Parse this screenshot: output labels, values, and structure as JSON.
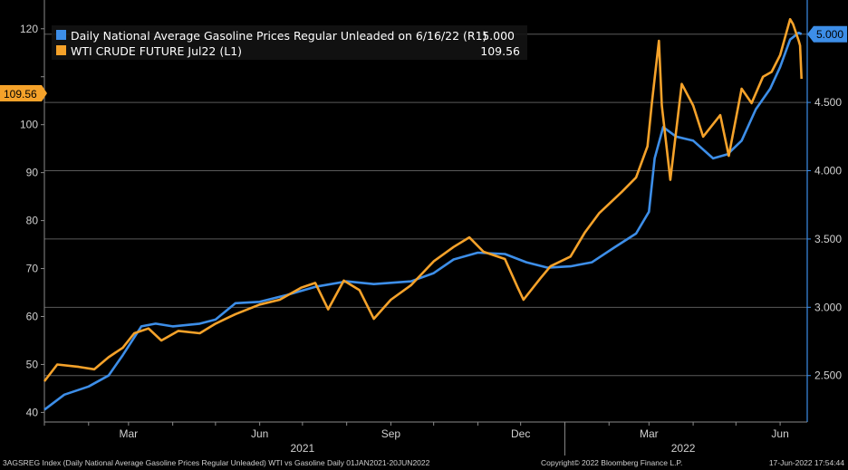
{
  "chart_data": {
    "type": "line",
    "title": "",
    "x_range": [
      "2021-01-01",
      "2022-06-20"
    ],
    "left_axis": {
      "ticks": [
        40,
        50,
        60,
        70,
        80,
        90,
        100,
        110,
        120
      ],
      "tick_labels": [
        "40",
        "50",
        "60",
        "70",
        "80",
        "90",
        "100",
        "",
        "120"
      ],
      "range": [
        38,
        126
      ]
    },
    "right_axis": {
      "ticks": [
        2.5,
        3.0,
        3.5,
        4.0,
        4.5,
        5.0
      ],
      "tick_labels": [
        "2.500",
        "3.000",
        "3.500",
        "4.000",
        "4.500",
        "5.000"
      ],
      "range": [
        2.16,
        5.25
      ]
    },
    "month_labels": [
      {
        "label": "Mar",
        "date": "2021-03-01"
      },
      {
        "label": "Jun",
        "date": "2021-06-01"
      },
      {
        "label": "Sep",
        "date": "2021-09-01"
      },
      {
        "label": "Dec",
        "date": "2021-12-01"
      },
      {
        "label": "Mar",
        "date": "2022-03-01"
      },
      {
        "label": "Jun",
        "date": "2022-06-01"
      }
    ],
    "year_labels": [
      {
        "label": "2021",
        "date": "2021-07-01"
      },
      {
        "label": "2022",
        "date": "2022-03-25"
      }
    ],
    "year_divider": "2022-01-01",
    "grid": true,
    "legend_position": "top-left",
    "series": [
      {
        "name": "Daily National Average Gasoline Prices Regular Unleaded on 6/16/22  (R1)",
        "legend_value": "5.000",
        "axis": "right",
        "color": "#3d8ee8",
        "last_value_tag": "5.000",
        "points": [
          [
            "2021-01-01",
            2.25
          ],
          [
            "2021-01-15",
            2.36
          ],
          [
            "2021-02-01",
            2.42
          ],
          [
            "2021-02-15",
            2.5
          ],
          [
            "2021-02-25",
            2.65
          ],
          [
            "2021-03-10",
            2.86
          ],
          [
            "2021-03-20",
            2.88
          ],
          [
            "2021-04-01",
            2.86
          ],
          [
            "2021-04-20",
            2.88
          ],
          [
            "2021-05-01",
            2.91
          ],
          [
            "2021-05-15",
            3.03
          ],
          [
            "2021-06-01",
            3.04
          ],
          [
            "2021-06-20",
            3.09
          ],
          [
            "2021-07-10",
            3.15
          ],
          [
            "2021-08-01",
            3.19
          ],
          [
            "2021-08-20",
            3.17
          ],
          [
            "2021-09-15",
            3.19
          ],
          [
            "2021-10-01",
            3.25
          ],
          [
            "2021-10-15",
            3.35
          ],
          [
            "2021-11-01",
            3.4
          ],
          [
            "2021-11-20",
            3.39
          ],
          [
            "2021-12-05",
            3.33
          ],
          [
            "2021-12-20",
            3.29
          ],
          [
            "2022-01-05",
            3.3
          ],
          [
            "2022-01-20",
            3.33
          ],
          [
            "2022-02-05",
            3.44
          ],
          [
            "2022-02-20",
            3.54
          ],
          [
            "2022-03-01",
            3.7
          ],
          [
            "2022-03-05",
            4.09
          ],
          [
            "2022-03-11",
            4.32
          ],
          [
            "2022-03-20",
            4.25
          ],
          [
            "2022-04-01",
            4.22
          ],
          [
            "2022-04-15",
            4.09
          ],
          [
            "2022-04-25",
            4.12
          ],
          [
            "2022-05-05",
            4.22
          ],
          [
            "2022-05-15",
            4.45
          ],
          [
            "2022-05-25",
            4.6
          ],
          [
            "2022-06-01",
            4.76
          ],
          [
            "2022-06-08",
            4.96
          ],
          [
            "2022-06-14",
            5.01
          ],
          [
            "2022-06-16",
            5.0
          ]
        ]
      },
      {
        "name": "WTI CRUDE FUTURE Jul22  (L1)",
        "legend_value": "109.56",
        "axis": "left",
        "color": "#f5a22a",
        "last_value_tag": "109.56",
        "points": [
          [
            "2021-01-01",
            46.5
          ],
          [
            "2021-01-10",
            50.0
          ],
          [
            "2021-01-25",
            49.5
          ],
          [
            "2021-02-05",
            49.0
          ],
          [
            "2021-02-15",
            51.5
          ],
          [
            "2021-02-25",
            53.5
          ],
          [
            "2021-03-05",
            56.5
          ],
          [
            "2021-03-15",
            57.5
          ],
          [
            "2021-03-24",
            55.0
          ],
          [
            "2021-04-05",
            57.0
          ],
          [
            "2021-04-20",
            56.5
          ],
          [
            "2021-05-01",
            58.5
          ],
          [
            "2021-05-15",
            60.5
          ],
          [
            "2021-06-01",
            62.5
          ],
          [
            "2021-06-15",
            63.5
          ],
          [
            "2021-06-30",
            66.0
          ],
          [
            "2021-07-10",
            67.0
          ],
          [
            "2021-07-19",
            61.5
          ],
          [
            "2021-07-30",
            67.5
          ],
          [
            "2021-08-10",
            65.5
          ],
          [
            "2021-08-20",
            59.5
          ],
          [
            "2021-09-01",
            63.5
          ],
          [
            "2021-09-15",
            66.5
          ],
          [
            "2021-10-01",
            71.5
          ],
          [
            "2021-10-15",
            74.5
          ],
          [
            "2021-10-26",
            76.5
          ],
          [
            "2021-11-05",
            73.5
          ],
          [
            "2021-11-20",
            72.0
          ],
          [
            "2021-11-29",
            66.0
          ],
          [
            "2021-12-03",
            63.5
          ],
          [
            "2021-12-15",
            68.0
          ],
          [
            "2021-12-22",
            70.5
          ],
          [
            "2022-01-05",
            72.5
          ],
          [
            "2022-01-15",
            77.5
          ],
          [
            "2022-01-25",
            81.5
          ],
          [
            "2022-02-10",
            86.0
          ],
          [
            "2022-02-20",
            89.0
          ],
          [
            "2022-02-28",
            95.5
          ],
          [
            "2022-03-03",
            104.5
          ],
          [
            "2022-03-08",
            117.5
          ],
          [
            "2022-03-10",
            104.0
          ],
          [
            "2022-03-16",
            88.5
          ],
          [
            "2022-03-24",
            108.5
          ],
          [
            "2022-04-01",
            104.0
          ],
          [
            "2022-04-08",
            97.5
          ],
          [
            "2022-04-20",
            102.0
          ],
          [
            "2022-04-26",
            93.5
          ],
          [
            "2022-05-05",
            107.5
          ],
          [
            "2022-05-12",
            104.5
          ],
          [
            "2022-05-20",
            110.0
          ],
          [
            "2022-05-26",
            111.0
          ],
          [
            "2022-06-01",
            114.5
          ],
          [
            "2022-06-08",
            122.0
          ],
          [
            "2022-06-10",
            121.0
          ],
          [
            "2022-06-14",
            117.5
          ],
          [
            "2022-06-15",
            116.5
          ],
          [
            "2022-06-16",
            109.56
          ]
        ]
      }
    ]
  },
  "footer": {
    "description": "3AGSREG Index (Daily National Average Gasoline Prices Regular Unleaded) WTI vs Gasoline  Daily 01JAN2021-20JUN2022",
    "copyright": "Copyright© 2022 Bloomberg Finance L.P.",
    "timestamp": "17-Jun-2022 17:54:44"
  }
}
